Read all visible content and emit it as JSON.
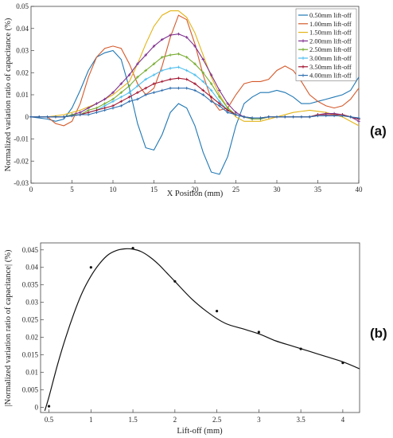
{
  "chart_data": [
    {
      "type": "line",
      "panel_label": "(a)",
      "xlabel": "X Position (mm)",
      "ylabel": "Normalized variation ratio of capacitance (%)",
      "xlim": [
        0,
        40
      ],
      "ylim": [
        -0.03,
        0.05
      ],
      "xticks": [
        0,
        5,
        10,
        15,
        20,
        25,
        30,
        35,
        40
      ],
      "yticks": [
        -0.03,
        -0.02,
        -0.01,
        0,
        0.01,
        0.02,
        0.03,
        0.04,
        0.05
      ],
      "ytick_labels": [
        "-0.03",
        "-0.02",
        "-0.01",
        "0",
        "0.01",
        "0.02",
        "0.03",
        "0.04",
        "0.05"
      ],
      "grid": false,
      "legend_position": "top-right",
      "series": [
        {
          "name": "0.50mm lift-off",
          "color": "#1f77b4",
          "marker": "none",
          "x": [
            0,
            2,
            3,
            4,
            5,
            6,
            7,
            8,
            9,
            10,
            11,
            12,
            13,
            14,
            15,
            16,
            17,
            18,
            19,
            20,
            21,
            22,
            23,
            24,
            25,
            26,
            27,
            28,
            29,
            30,
            31,
            32,
            33,
            34,
            35,
            36,
            37,
            38,
            39,
            40
          ],
          "y": [
            0,
            -0.001,
            -0.002,
            -0.001,
            0.004,
            0.012,
            0.021,
            0.027,
            0.029,
            0.03,
            0.026,
            0.013,
            -0.003,
            -0.014,
            -0.015,
            -0.008,
            0.002,
            0.006,
            0.004,
            -0.004,
            -0.016,
            -0.025,
            -0.026,
            -0.018,
            -0.004,
            0.006,
            0.009,
            0.011,
            0.011,
            0.012,
            0.011,
            0.009,
            0.006,
            0.006,
            0.007,
            0.008,
            0.009,
            0.01,
            0.012,
            0.018
          ]
        },
        {
          "name": "1.00mm lift-off",
          "color": "#d4592a",
          "marker": "none",
          "x": [
            0,
            2,
            3,
            4,
            5,
            6,
            7,
            8,
            9,
            10,
            11,
            12,
            13,
            14,
            15,
            16,
            17,
            18,
            19,
            20,
            21,
            22,
            23,
            24,
            25,
            26,
            27,
            28,
            29,
            30,
            31,
            32,
            33,
            34,
            35,
            36,
            37,
            38,
            39,
            40
          ],
          "y": [
            0,
            0,
            -0.003,
            -0.004,
            -0.002,
            0.006,
            0.018,
            0.027,
            0.031,
            0.032,
            0.031,
            0.024,
            0.015,
            0.01,
            0.013,
            0.023,
            0.036,
            0.046,
            0.044,
            0.033,
            0.019,
            0.008,
            0.003,
            0.004,
            0.01,
            0.015,
            0.016,
            0.016,
            0.017,
            0.021,
            0.023,
            0.021,
            0.016,
            0.01,
            0.007,
            0.005,
            0.004,
            0.005,
            0.008,
            0.013
          ]
        },
        {
          "name": "1.50mm lift-off",
          "color": "#e3b315",
          "marker": "none",
          "x": [
            0,
            2,
            4,
            6,
            8,
            10,
            12,
            13,
            14,
            15,
            16,
            17,
            18,
            19,
            20,
            21,
            22,
            23,
            24,
            25,
            26,
            28,
            30,
            32,
            34,
            36,
            38,
            40
          ],
          "y": [
            0,
            0,
            0.001,
            0.003,
            0.006,
            0.01,
            0.016,
            0.024,
            0.033,
            0.041,
            0.046,
            0.048,
            0.048,
            0.045,
            0.038,
            0.028,
            0.018,
            0.01,
            0.004,
            0.0,
            -0.002,
            -0.002,
            0.0,
            0.002,
            0.003,
            0.002,
            0.0,
            -0.004
          ]
        },
        {
          "name": "2.00mm lift-off",
          "color": "#7e2f8e",
          "marker": "star",
          "x": [
            0,
            1,
            2,
            3,
            4,
            5,
            6,
            7,
            8,
            9,
            10,
            11,
            12,
            13,
            14,
            15,
            16,
            17,
            18,
            19,
            20,
            21,
            22,
            23,
            24,
            25,
            26,
            27,
            28,
            29,
            30,
            31,
            32,
            33,
            34,
            35,
            36,
            37,
            38,
            39,
            40
          ],
          "y": [
            0,
            0,
            0,
            0,
            0,
            0.001,
            0.002,
            0.004,
            0.006,
            0.008,
            0.011,
            0.015,
            0.019,
            0.024,
            0.028,
            0.032,
            0.035,
            0.037,
            0.0375,
            0.036,
            0.032,
            0.026,
            0.019,
            0.012,
            0.006,
            0.002,
            0.0,
            -0.001,
            -0.001,
            0,
            0,
            0,
            0,
            0,
            0,
            0.001,
            0.0015,
            0.0015,
            0.001,
            0,
            -0.002
          ]
        },
        {
          "name": "2.50mm lift-off",
          "color": "#77ac30",
          "marker": "star",
          "x": [
            0,
            1,
            2,
            3,
            4,
            5,
            6,
            7,
            8,
            9,
            10,
            11,
            12,
            13,
            14,
            15,
            16,
            17,
            18,
            19,
            20,
            21,
            22,
            23,
            24,
            25,
            26,
            27,
            28,
            29,
            30,
            31,
            32,
            33,
            34,
            35,
            36,
            37,
            38,
            39,
            40
          ],
          "y": [
            0,
            0,
            0,
            0,
            0,
            0.001,
            0.001,
            0.003,
            0.004,
            0.006,
            0.008,
            0.011,
            0.014,
            0.018,
            0.021,
            0.024,
            0.027,
            0.028,
            0.0285,
            0.027,
            0.024,
            0.02,
            0.015,
            0.009,
            0.004,
            0.001,
            0.0,
            -0.001,
            -0.001,
            0,
            0,
            0,
            0,
            0,
            0,
            0.001,
            0.001,
            0.001,
            0.001,
            0,
            -0.001
          ]
        },
        {
          "name": "3.00mm lift-off",
          "color": "#4dbeee",
          "marker": "star",
          "x": [
            0,
            1,
            2,
            3,
            4,
            5,
            6,
            7,
            8,
            9,
            10,
            11,
            12,
            13,
            14,
            15,
            16,
            17,
            18,
            19,
            20,
            21,
            22,
            23,
            24,
            25,
            26,
            27,
            28,
            29,
            30,
            31,
            32,
            33,
            34,
            35,
            36,
            37,
            38,
            39,
            40
          ],
          "y": [
            0,
            0,
            0,
            0,
            0,
            0.0005,
            0.001,
            0.002,
            0.003,
            0.005,
            0.007,
            0.009,
            0.011,
            0.014,
            0.017,
            0.019,
            0.021,
            0.022,
            0.0225,
            0.021,
            0.019,
            0.016,
            0.012,
            0.007,
            0.003,
            0.001,
            0.0,
            -0.0005,
            -0.0005,
            0,
            0,
            0,
            0,
            0,
            0,
            0.001,
            0.001,
            0.001,
            0.001,
            0,
            -0.001
          ]
        },
        {
          "name": "3.50mm lift-off",
          "color": "#a2142f",
          "marker": "star",
          "x": [
            0,
            1,
            2,
            3,
            4,
            5,
            6,
            7,
            8,
            9,
            10,
            11,
            12,
            13,
            14,
            15,
            16,
            17,
            18,
            19,
            20,
            21,
            22,
            23,
            24,
            25,
            26,
            27,
            28,
            29,
            30,
            31,
            32,
            33,
            34,
            35,
            36,
            37,
            38,
            39,
            40
          ],
          "y": [
            0,
            0,
            0,
            0,
            0,
            0.0005,
            0.001,
            0.002,
            0.003,
            0.004,
            0.005,
            0.007,
            0.009,
            0.011,
            0.013,
            0.015,
            0.016,
            0.017,
            0.0175,
            0.017,
            0.015,
            0.012,
            0.009,
            0.006,
            0.003,
            0.001,
            0.0,
            -0.0005,
            -0.0005,
            0,
            0,
            0,
            0,
            0,
            0,
            0.001,
            0.001,
            0.001,
            0.001,
            0,
            -0.001
          ]
        },
        {
          "name": "4.00mm lift-off",
          "color": "#2e6fb0",
          "marker": "star",
          "x": [
            0,
            1,
            2,
            3,
            4,
            5,
            6,
            7,
            8,
            9,
            10,
            11,
            12,
            13,
            14,
            15,
            16,
            17,
            18,
            19,
            20,
            21,
            22,
            23,
            24,
            25,
            26,
            27,
            28,
            29,
            30,
            31,
            32,
            33,
            34,
            35,
            36,
            37,
            38,
            39,
            40
          ],
          "y": [
            0,
            0,
            0,
            0,
            0,
            0.0005,
            0.001,
            0.001,
            0.002,
            0.003,
            0.004,
            0.005,
            0.007,
            0.008,
            0.01,
            0.011,
            0.012,
            0.013,
            0.013,
            0.013,
            0.012,
            0.01,
            0.007,
            0.005,
            0.002,
            0.001,
            0.0,
            -0.0005,
            -0.0005,
            0,
            0,
            0,
            0,
            0,
            0,
            0.0005,
            0.0005,
            0.0005,
            0.0005,
            0,
            -0.0005
          ]
        }
      ]
    },
    {
      "type": "scatter",
      "panel_label": "(b)",
      "xlabel": "Lift-off (mm)",
      "ylabel": "|Normalized variation ratio of capacitance| (%)",
      "xlim": [
        0.4,
        4.2
      ],
      "ylim": [
        -0.0015,
        0.047
      ],
      "xticks": [
        0.5,
        1,
        1.5,
        2,
        2.5,
        3,
        3.5,
        4
      ],
      "yticks": [
        0,
        0.005,
        0.01,
        0.015,
        0.02,
        0.025,
        0.03,
        0.035,
        0.04,
        0.045
      ],
      "ytick_labels": [
        "0",
        "0.005",
        "0.01",
        "0.015",
        "0.02",
        "0.025",
        "0.03",
        "0.035",
        "0.04",
        "0.045"
      ],
      "grid": false,
      "points": {
        "x": [
          0.5,
          1.0,
          1.5,
          2.0,
          2.5,
          3.0,
          3.5,
          4.0
        ],
        "y": [
          0.0003,
          0.04,
          0.0455,
          0.036,
          0.0275,
          0.0215,
          0.0167,
          0.0127
        ]
      },
      "fit": {
        "x": [
          0.45,
          0.5,
          0.6,
          0.7,
          0.8,
          0.9,
          1.0,
          1.1,
          1.2,
          1.3,
          1.4,
          1.5,
          1.6,
          1.7,
          1.8,
          1.9,
          2.0,
          2.2,
          2.4,
          2.6,
          2.8,
          3.0,
          3.2,
          3.4,
          3.6,
          3.8,
          4.0,
          4.2
        ],
        "y": [
          -0.001,
          0.003,
          0.012,
          0.02,
          0.027,
          0.033,
          0.0375,
          0.041,
          0.0435,
          0.0448,
          0.0453,
          0.0452,
          0.0445,
          0.043,
          0.041,
          0.0385,
          0.036,
          0.031,
          0.027,
          0.024,
          0.0225,
          0.021,
          0.019,
          0.0175,
          0.016,
          0.0145,
          0.013,
          0.011
        ]
      }
    }
  ]
}
